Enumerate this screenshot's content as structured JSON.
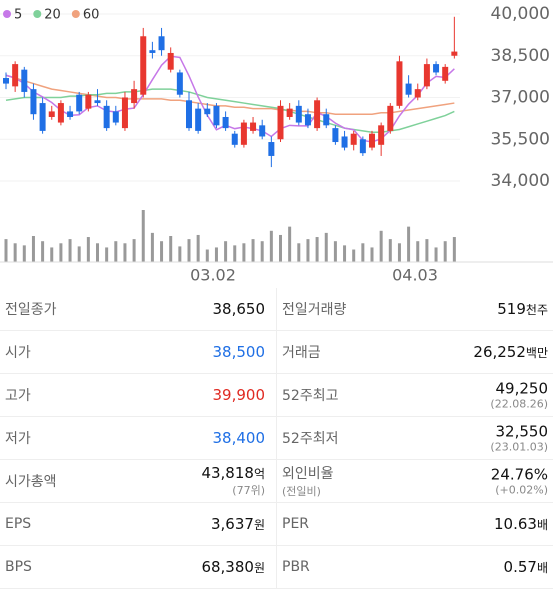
{
  "chart_data": {
    "type": "candlestick",
    "series": [
      {
        "name": "5",
        "color": "#c678e8",
        "values": [
          37800,
          37700,
          37500,
          37200,
          37020,
          36820,
          36540,
          36360,
          36380,
          36640,
          36700,
          36520,
          36480,
          36580,
          36620,
          37100,
          37640,
          38160,
          38480,
          38440,
          37780,
          37020,
          36360,
          35840,
          36000,
          35880,
          35940,
          35880,
          35800,
          35600,
          35880,
          36000,
          35980,
          35980,
          36460,
          36320,
          36080,
          35900,
          35840,
          35460,
          35400,
          35520,
          35820,
          36340,
          36760,
          37080,
          37520,
          37760,
          37720,
          38030
        ]
      },
      {
        "name": "20",
        "color": "#7fd19a",
        "values": [
          36900,
          36950,
          37000,
          37000,
          37000,
          37000,
          37000,
          37050,
          37050,
          37100,
          37100,
          37150,
          37150,
          37200,
          37200,
          37250,
          37300,
          37300,
          37300,
          37250,
          37200,
          37100,
          37000,
          36950,
          36900,
          36850,
          36800,
          36750,
          36700,
          36650,
          36600,
          36500,
          36400,
          36300,
          36200,
          36100,
          36000,
          35900,
          35850,
          35800,
          35750,
          35750,
          35800,
          35850,
          35950,
          36050,
          36150,
          36250,
          36350,
          36500
        ]
      },
      {
        "name": "60",
        "color": "#f0a27e",
        "values": [
          37800,
          37700,
          37600,
          37500,
          37400,
          37300,
          37250,
          37200,
          37150,
          37100,
          37050,
          37000,
          37000,
          36950,
          36950,
          36950,
          36950,
          36950,
          36900,
          36900,
          36850,
          36800,
          36750,
          36700,
          36700,
          36650,
          36650,
          36600,
          36600,
          36600,
          36550,
          36550,
          36500,
          36500,
          36450,
          36450,
          36400,
          36400,
          36400,
          36400,
          36400,
          36450,
          36450,
          36500,
          36550,
          36600,
          36650,
          36700,
          36750,
          36800
        ]
      }
    ],
    "candles": [
      {
        "open": 37700,
        "high": 37900,
        "low": 37300,
        "close": 37500
      },
      {
        "open": 37400,
        "high": 38300,
        "low": 37200,
        "close": 38200
      },
      {
        "open": 38000,
        "high": 38100,
        "low": 37000,
        "close": 37200
      },
      {
        "open": 37300,
        "high": 37500,
        "low": 36200,
        "close": 36400
      },
      {
        "open": 36800,
        "high": 37000,
        "low": 35700,
        "close": 35800
      },
      {
        "open": 36300,
        "high": 36700,
        "low": 36200,
        "close": 36500
      },
      {
        "open": 36100,
        "high": 36900,
        "low": 36000,
        "close": 36800
      },
      {
        "open": 36500,
        "high": 36700,
        "low": 36200,
        "close": 36300
      },
      {
        "open": 37100,
        "high": 37200,
        "low": 36400,
        "close": 36500
      },
      {
        "open": 36600,
        "high": 37200,
        "low": 36500,
        "close": 37100
      },
      {
        "open": 36900,
        "high": 37300,
        "low": 36700,
        "close": 36800
      },
      {
        "open": 36700,
        "high": 36900,
        "low": 35800,
        "close": 35900
      },
      {
        "open": 36500,
        "high": 36700,
        "low": 36000,
        "close": 36100
      },
      {
        "open": 35900,
        "high": 37200,
        "low": 35800,
        "close": 37000
      },
      {
        "open": 36800,
        "high": 37600,
        "low": 36600,
        "close": 37300
      },
      {
        "open": 37100,
        "high": 39500,
        "low": 37000,
        "close": 39200
      },
      {
        "open": 38700,
        "high": 39000,
        "low": 38400,
        "close": 38600
      },
      {
        "open": 39200,
        "high": 39500,
        "low": 38500,
        "close": 38700
      },
      {
        "open": 38000,
        "high": 38800,
        "low": 37900,
        "close": 38600
      },
      {
        "open": 37900,
        "high": 38000,
        "low": 37000,
        "close": 37100
      },
      {
        "open": 36900,
        "high": 37200,
        "low": 35800,
        "close": 35900
      },
      {
        "open": 36600,
        "high": 36800,
        "low": 35700,
        "close": 35800
      },
      {
        "open": 36600,
        "high": 36800,
        "low": 36300,
        "close": 36400
      },
      {
        "open": 36700,
        "high": 36800,
        "low": 35900,
        "close": 36000
      },
      {
        "open": 36300,
        "high": 36500,
        "low": 35800,
        "close": 35900
      },
      {
        "open": 35700,
        "high": 35800,
        "low": 35200,
        "close": 35300
      },
      {
        "open": 35300,
        "high": 36200,
        "low": 35200,
        "close": 36100
      },
      {
        "open": 35800,
        "high": 36300,
        "low": 35700,
        "close": 36100
      },
      {
        "open": 36000,
        "high": 36200,
        "low": 35500,
        "close": 35600
      },
      {
        "open": 35400,
        "high": 35600,
        "low": 34500,
        "close": 34900
      },
      {
        "open": 35500,
        "high": 36900,
        "low": 35400,
        "close": 36700
      },
      {
        "open": 36300,
        "high": 36800,
        "low": 36200,
        "close": 36600
      },
      {
        "open": 36700,
        "high": 36900,
        "low": 36000,
        "close": 36100
      },
      {
        "open": 36400,
        "high": 36600,
        "low": 35900,
        "close": 36000
      },
      {
        "open": 35900,
        "high": 37000,
        "low": 35800,
        "close": 36900
      },
      {
        "open": 36400,
        "high": 36600,
        "low": 35900,
        "close": 36000
      },
      {
        "open": 35900,
        "high": 36000,
        "low": 35300,
        "close": 35400
      },
      {
        "open": 35600,
        "high": 35800,
        "low": 35100,
        "close": 35200
      },
      {
        "open": 35300,
        "high": 35800,
        "low": 35100,
        "close": 35700
      },
      {
        "open": 35500,
        "high": 35600,
        "low": 34900,
        "close": 35000
      },
      {
        "open": 35200,
        "high": 35800,
        "low": 35100,
        "close": 35700
      },
      {
        "open": 35300,
        "high": 36100,
        "low": 34900,
        "close": 36000
      },
      {
        "open": 35800,
        "high": 36800,
        "low": 35700,
        "close": 36700
      },
      {
        "open": 36700,
        "high": 38500,
        "low": 36600,
        "close": 38300
      },
      {
        "open": 37500,
        "high": 37800,
        "low": 37000,
        "close": 37100
      },
      {
        "open": 37000,
        "high": 37500,
        "low": 36900,
        "close": 37300
      },
      {
        "open": 37400,
        "high": 38400,
        "low": 37300,
        "close": 38200
      },
      {
        "open": 38200,
        "high": 38300,
        "low": 37800,
        "close": 37900
      },
      {
        "open": 37600,
        "high": 38200,
        "low": 37500,
        "close": 38100
      },
      {
        "open": 38500,
        "high": 39900,
        "low": 38400,
        "close": 38650
      }
    ],
    "up_color": "#e8372f",
    "down_color": "#1f6fe5",
    "volume_color": "#999999",
    "volume": [
      22,
      18,
      16,
      25,
      20,
      14,
      18,
      22,
      15,
      24,
      18,
      14,
      20,
      18,
      22,
      50,
      28,
      20,
      25,
      15,
      22,
      26,
      12,
      14,
      20,
      16,
      18,
      22,
      20,
      30,
      26,
      34,
      18,
      22,
      24,
      28,
      20,
      16,
      12,
      18,
      14,
      30,
      22,
      18,
      34,
      20,
      22,
      14,
      20,
      24
    ],
    "x_labels": [
      "03.02",
      "04.03"
    ],
    "ylim": [
      34000,
      40000
    ],
    "yticks": [
      {
        "value": 40000,
        "label": "40,000"
      },
      {
        "value": 38500,
        "label": "38,500"
      },
      {
        "value": 37000,
        "label": "37,000"
      },
      {
        "value": 35500,
        "label": "35,500"
      },
      {
        "value": 34000,
        "label": "34,000"
      }
    ],
    "grid": true
  },
  "table": {
    "rows": [
      [
        {
          "label": "전일종가",
          "value": "38,650"
        },
        {
          "label": "전일거래량",
          "value": "519",
          "unit": "천주"
        }
      ],
      [
        {
          "label": "시가",
          "value": "38,500",
          "color": "#1f6fe5"
        },
        {
          "label": "거래금",
          "value": "26,252",
          "unit": "백만"
        }
      ],
      [
        {
          "label": "고가",
          "value": "39,900",
          "color": "#e02a22"
        },
        {
          "label": "52주최고",
          "value": "49,250",
          "sub": "(22.08.26)"
        }
      ],
      [
        {
          "label": "저가",
          "value": "38,400",
          "color": "#1f6fe5"
        },
        {
          "label": "52주최저",
          "value": "32,550",
          "sub": "(23.01.03)"
        }
      ],
      [
        {
          "label": "시가총액",
          "value": "43,818",
          "unit": "억",
          "sub": "(77위)"
        },
        {
          "label": "외인비율",
          "sublabel": "(전일비)",
          "value": "24.76%",
          "sub": "(+0.02%)"
        }
      ],
      [
        {
          "label": "EPS",
          "value": "3,637",
          "unit": "원"
        },
        {
          "label": "PER",
          "value": "10.63",
          "unit": "배"
        }
      ],
      [
        {
          "label": "BPS",
          "value": "68,380",
          "unit": "원"
        },
        {
          "label": "PBR",
          "value": "0.57",
          "unit": "배"
        }
      ]
    ]
  }
}
